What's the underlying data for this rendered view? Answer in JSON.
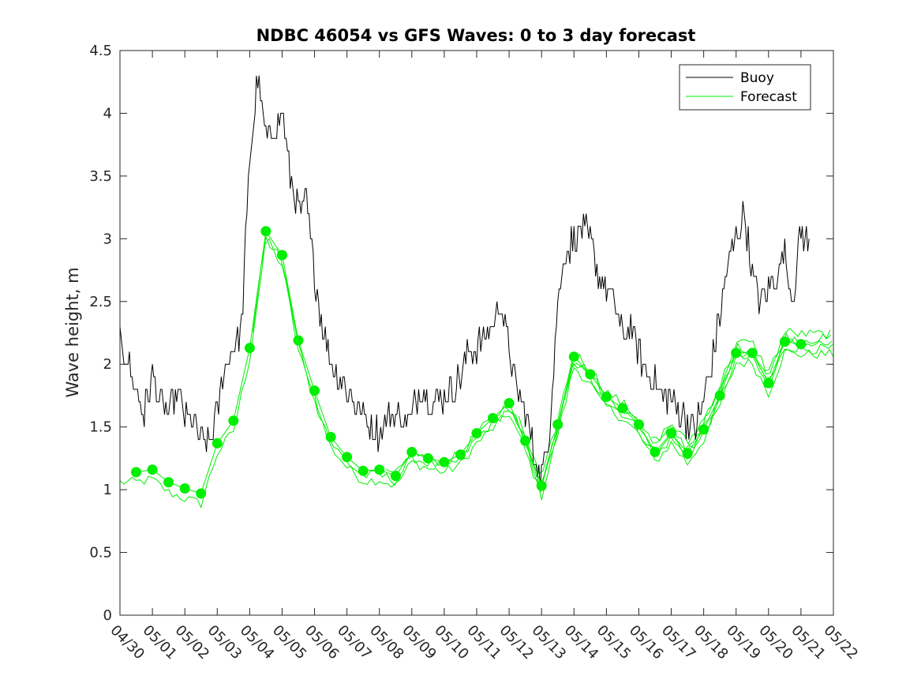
{
  "chart_data": {
    "type": "line",
    "title": "NDBC 46054 vs GFS Waves: 0 to 3 day forecast",
    "xlabel": "",
    "ylabel": "Wave height, m",
    "xlim": [
      "04/30",
      "05/22"
    ],
    "ylim": [
      0,
      4.5
    ],
    "yticks": [
      "0",
      "0.5",
      "1",
      "1.5",
      "2",
      "2.5",
      "3",
      "3.5",
      "4",
      "4.5"
    ],
    "xticks": [
      "04/30",
      "05/01",
      "05/02",
      "05/03",
      "05/04",
      "05/05",
      "05/06",
      "05/07",
      "05/08",
      "05/09",
      "05/10",
      "05/11",
      "05/12",
      "05/13",
      "05/14",
      "05/15",
      "05/16",
      "05/17",
      "05/18",
      "05/19",
      "05/20",
      "05/21",
      "05/22"
    ],
    "grid": false,
    "legend_position": "top-right",
    "colors": {
      "buoy": "#000000",
      "forecast": "#00ee00"
    },
    "series": [
      {
        "name": "Buoy",
        "x_days": [
          0,
          0.25,
          0.5,
          0.75,
          1,
          1.25,
          1.5,
          1.75,
          2,
          2.25,
          2.5,
          2.75,
          3,
          3.25,
          3.5,
          3.75,
          4,
          4.25,
          4.5,
          4.75,
          5,
          5.25,
          5.5,
          5.75,
          6,
          6.25,
          6.5,
          6.75,
          7,
          7.25,
          7.5,
          7.75,
          8,
          8.25,
          8.5,
          8.75,
          9,
          9.25,
          9.5,
          9.75,
          10,
          10.25,
          10.5,
          10.75,
          11,
          11.25,
          11.5,
          11.75,
          12,
          12.25,
          12.5,
          12.75,
          13,
          13.25,
          13.5,
          13.75,
          14,
          14.25,
          14.5,
          14.75,
          15,
          15.25,
          15.5,
          15.75,
          16,
          16.25,
          16.5,
          16.75,
          17,
          17.25,
          17.5,
          17.75,
          18,
          18.25,
          18.5,
          18.75,
          19,
          19.25,
          19.5,
          19.75,
          20,
          20.25,
          20.5,
          20.75,
          21,
          21.25
        ],
        "values": [
          2.2,
          2.0,
          1.8,
          1.6,
          1.9,
          1.7,
          1.6,
          1.75,
          1.6,
          1.55,
          1.4,
          1.35,
          1.6,
          2.0,
          2.1,
          2.3,
          3.6,
          4.3,
          3.8,
          3.9,
          4.0,
          3.5,
          3.2,
          3.3,
          2.7,
          2.3,
          2.0,
          1.9,
          1.8,
          1.7,
          1.6,
          1.5,
          1.45,
          1.55,
          1.6,
          1.55,
          1.6,
          1.8,
          1.75,
          1.7,
          1.75,
          1.8,
          1.9,
          2.1,
          2.15,
          2.2,
          2.3,
          2.5,
          2.1,
          1.8,
          1.6,
          1.3,
          1.1,
          1.5,
          2.5,
          2.9,
          3.0,
          3.1,
          3.0,
          2.7,
          2.6,
          2.5,
          2.2,
          2.3,
          2.1,
          1.9,
          1.85,
          1.7,
          1.75,
          1.6,
          1.55,
          1.5,
          1.7,
          2.0,
          2.4,
          2.8,
          3.0,
          3.2,
          2.7,
          2.5,
          2.6,
          2.7,
          2.9,
          2.5,
          3.1,
          2.9
        ]
      },
      {
        "name": "Forecast",
        "x_days": [
          0.5,
          1,
          1.5,
          2,
          2.5,
          3,
          3.5,
          4,
          4.5,
          5,
          5.5,
          6,
          6.5,
          7,
          7.5,
          8,
          8.5,
          9,
          9.5,
          10,
          10.5,
          11,
          11.5,
          12,
          12.5,
          13,
          13.5,
          14,
          14.5,
          15,
          15.5,
          16,
          16.5,
          17,
          17.5,
          18,
          18.5,
          19,
          19.5,
          20,
          20.5,
          21
        ],
        "values": [
          1.14,
          1.16,
          1.06,
          1.01,
          0.97,
          1.37,
          1.55,
          2.13,
          3.06,
          2.87,
          2.19,
          1.79,
          1.42,
          1.26,
          1.15,
          1.16,
          1.11,
          1.3,
          1.25,
          1.22,
          1.28,
          1.45,
          1.57,
          1.69,
          1.39,
          1.03,
          1.52,
          2.06,
          1.92,
          1.74,
          1.65,
          1.52,
          1.3,
          1.45,
          1.29,
          1.48,
          1.75,
          2.09,
          2.09,
          1.85,
          2.18,
          2.16
        ]
      }
    ]
  }
}
